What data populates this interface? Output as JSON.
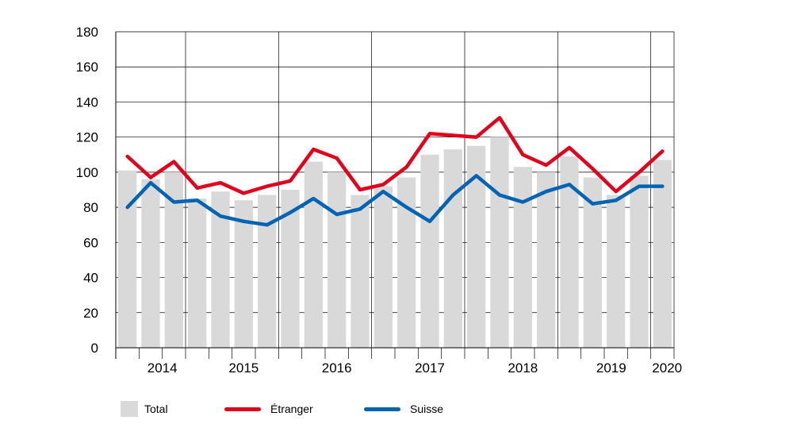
{
  "chart_data": {
    "type": "bar",
    "title": "",
    "xlabel": "",
    "ylabel": "",
    "ylim": [
      0,
      180
    ],
    "yticks": [
      0,
      20,
      40,
      60,
      80,
      100,
      120,
      140,
      160,
      180
    ],
    "year_labels": [
      "2014",
      "2015",
      "2016",
      "2017",
      "2018",
      "2019",
      "2020"
    ],
    "quarters": [
      "2013 Q4",
      "2014 Q1",
      "2014 Q2",
      "2014 Q3",
      "2014 Q4",
      "2015 Q1",
      "2015 Q2",
      "2015 Q3",
      "2015 Q4",
      "2016 Q1",
      "2016 Q2",
      "2016 Q3",
      "2016 Q4",
      "2017 Q1",
      "2017 Q2",
      "2017 Q3",
      "2017 Q4",
      "2018 Q1",
      "2018 Q2",
      "2018 Q3",
      "2018 Q4",
      "2019 Q1",
      "2019 Q2",
      "2019 Q3"
    ],
    "grid": true,
    "series": [
      {
        "name": "Total",
        "kind": "bar",
        "color": "#d9d9d9",
        "values": [
          101,
          96,
          100,
          85,
          89,
          84,
          87,
          90,
          106,
          100,
          87,
          92,
          97,
          110,
          113,
          115,
          120,
          103,
          100,
          109,
          97,
          87,
          98,
          107
        ]
      },
      {
        "name": "Étranger",
        "kind": "line",
        "color": "#e3001b",
        "values": [
          109,
          97,
          106,
          91,
          94,
          88,
          92,
          95,
          113,
          108,
          90,
          93,
          103,
          122,
          121,
          120,
          131,
          110,
          104,
          114,
          102,
          89,
          100,
          112
        ]
      },
      {
        "name": "Suisse",
        "kind": "line",
        "color": "#0064b4",
        "values": [
          80,
          94,
          83,
          84,
          75,
          72,
          70,
          77,
          85,
          76,
          79,
          89,
          80,
          72,
          87,
          98,
          87,
          83,
          89,
          93,
          82,
          84,
          92,
          92
        ]
      }
    ]
  },
  "legend": {
    "total_label": "Total",
    "etranger_label": "Étranger",
    "suisse_label": "Suisse"
  }
}
